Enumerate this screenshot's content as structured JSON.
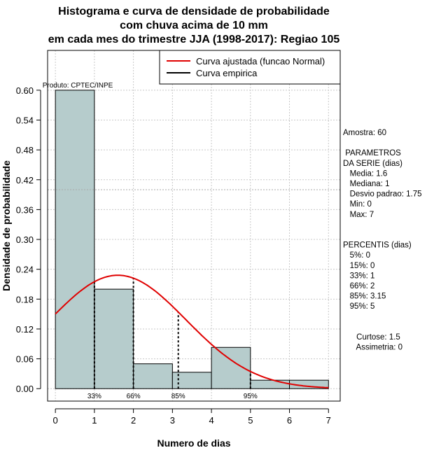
{
  "chart_data": {
    "type": "bar",
    "title_lines": [
      "Histograma e curva de densidade de probabilidade",
      "com chuva acima de 10 mm",
      "em cada mes do trimestre JJA (1998-2017): Regiao 105"
    ],
    "xlabel": "Numero de dias",
    "ylabel": "Densidade de probabilidade",
    "xlim": [
      -0.2,
      7.3
    ],
    "ylim": [
      -0.025,
      0.68
    ],
    "x_ticks": [
      0,
      1,
      2,
      3,
      4,
      5,
      6,
      7
    ],
    "x_tick_labels": [
      "0",
      "1",
      "2",
      "3",
      "4",
      "5",
      "6",
      "7"
    ],
    "y_ticks": [
      0.0,
      0.06,
      0.12,
      0.18,
      0.24,
      0.3,
      0.36,
      0.42,
      0.48,
      0.54,
      0.6
    ],
    "y_tick_labels": [
      "0.00",
      "0.06",
      "0.12",
      "0.18",
      "0.24",
      "0.30",
      "0.36",
      "0.42",
      "0.48",
      "0.54",
      "0.60"
    ],
    "bins": [
      {
        "start": 0,
        "end": 1,
        "density": 0.6
      },
      {
        "start": 1,
        "end": 2,
        "density": 0.2
      },
      {
        "start": 2,
        "end": 3,
        "density": 0.05
      },
      {
        "start": 3,
        "end": 4,
        "density": 0.033
      },
      {
        "start": 4,
        "end": 5,
        "density": 0.083
      },
      {
        "start": 5,
        "end": 6,
        "density": 0.017
      },
      {
        "start": 6,
        "end": 7,
        "density": 0.017
      }
    ],
    "bar_color": "#b6cccc",
    "normal_curve": {
      "mean": 1.6,
      "sd": 1.75,
      "x_from": 0,
      "x_to": 7,
      "color": "#e00000"
    },
    "reference_hline": 0.4,
    "percentile_lines": [
      {
        "label": "33%",
        "x": 1
      },
      {
        "label": "66%",
        "x": 2
      },
      {
        "label": "85%",
        "x": 3.15
      },
      {
        "label": "95%",
        "x": 5
      }
    ],
    "product_label": "Produto: CPTEC/INPE",
    "legend": {
      "position": "top-right",
      "entries": [
        {
          "label": "Curva ajustada (funcao Normal)",
          "color": "#e00000"
        },
        {
          "label": "Curva empirica",
          "color": "#000000"
        }
      ]
    },
    "side_panel": [
      "Amostra: 60",
      "",
      " PARAMETROS",
      "DA SERIE (dias)",
      "   Media: 1.6",
      "   Mediana: 1",
      "   Desvio padrao: 1.75",
      "   Min: 0",
      "   Max: 7",
      "",
      "",
      "PERCENTIS (dias)",
      "   5%: 0",
      "   15%: 0",
      "   33%: 1",
      "   66%: 2",
      "   85%: 3.15",
      "   95%: 5",
      "",
      "",
      "      Curtose: 1.5",
      "      Assimetria: 0"
    ]
  }
}
